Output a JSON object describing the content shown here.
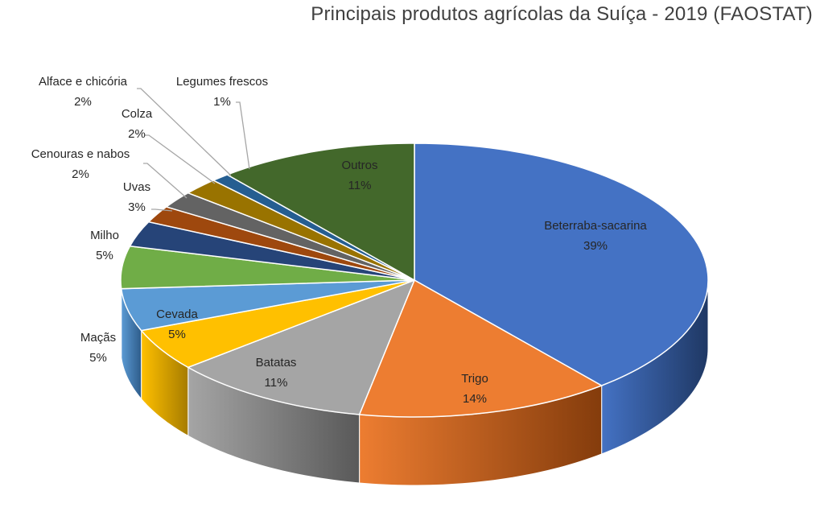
{
  "chart_data": {
    "type": "pie",
    "title": "Principais produtos agrícolas da Suíça - 2019 (FAOSTAT)",
    "slices": [
      {
        "name": "Beterraba-sacarina",
        "value": 39,
        "label": "39%",
        "color": "#4472C4",
        "side": "#1F3864"
      },
      {
        "name": "Trigo",
        "value": 14,
        "label": "14%",
        "color": "#ED7D31",
        "side": "#843C0C"
      },
      {
        "name": "Batatas",
        "value": 11,
        "label": "11%",
        "color": "#A5A5A5",
        "side": "#595959"
      },
      {
        "name": "Cevada",
        "value": 5,
        "label": "5%",
        "color": "#FFC000",
        "side": "#A67C00"
      },
      {
        "name": "Maçãs",
        "value": 5,
        "label": "5%",
        "color": "#5B9BD5",
        "side": "#2E5C8A"
      },
      {
        "name": "Milho",
        "value": 5,
        "label": "5%",
        "color": "#70AD47",
        "side": "#3D6B22"
      },
      {
        "name": "Uvas",
        "value": 3,
        "label": "3%",
        "color": "#264478",
        "side": "#15284A"
      },
      {
        "name": "Cenouras e nabos",
        "value": 2,
        "label": "2%",
        "color": "#9E480E",
        "side": "#5A2707"
      },
      {
        "name": "Colza",
        "value": 2,
        "label": "2%",
        "color": "#636363",
        "side": "#333333"
      },
      {
        "name": "Alface e chicória",
        "value": 2,
        "label": "2%",
        "color": "#997300",
        "side": "#5C4500"
      },
      {
        "name": "Legumes frescos",
        "value": 1,
        "label": "1%",
        "color": "#255E91",
        "side": "#12304C"
      },
      {
        "name": "Outros",
        "value": 11,
        "label": "11%",
        "color": "#43682B",
        "side": "#263C18"
      }
    ],
    "legend": "none"
  }
}
